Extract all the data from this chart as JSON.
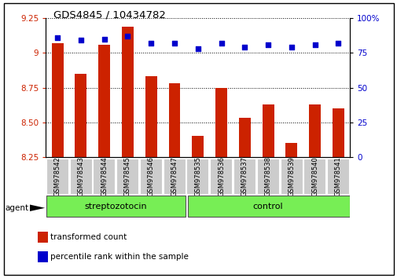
{
  "title": "GDS4845 / 10434782",
  "samples": [
    "GSM978542",
    "GSM978543",
    "GSM978544",
    "GSM978545",
    "GSM978546",
    "GSM978547",
    "GSM978535",
    "GSM978536",
    "GSM978537",
    "GSM978538",
    "GSM978539",
    "GSM978540",
    "GSM978541"
  ],
  "bar_values": [
    9.07,
    8.85,
    9.06,
    9.19,
    8.83,
    8.78,
    8.4,
    8.75,
    8.53,
    8.63,
    8.35,
    8.63,
    8.6
  ],
  "percentile_values": [
    86,
    84,
    85,
    87,
    82,
    82,
    78,
    82,
    79,
    81,
    79,
    81,
    82
  ],
  "bar_color": "#cc2200",
  "dot_color": "#0000cc",
  "ylim_left": [
    8.25,
    9.25
  ],
  "ylim_right": [
    0,
    100
  ],
  "yticks_left": [
    8.25,
    8.5,
    8.75,
    9.0,
    9.25
  ],
  "yticks_right": [
    0,
    25,
    50,
    75,
    100
  ],
  "group1_label": "streptozotocin",
  "group2_label": "control",
  "group1_count": 6,
  "group2_count": 7,
  "agent_label": "agent",
  "legend_bar": "transformed count",
  "legend_dot": "percentile rank within the sample",
  "group_bg_color": "#77ee55",
  "tick_label_bg": "#cccccc",
  "bar_bottom": 8.25
}
